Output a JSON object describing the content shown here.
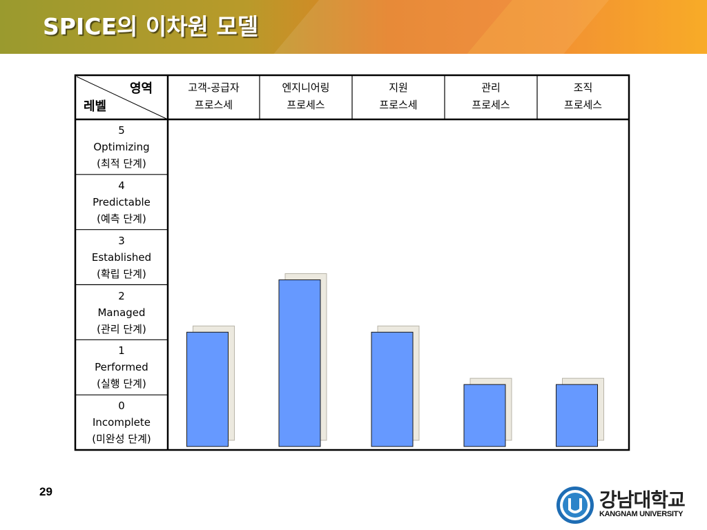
{
  "header": {
    "title": "SPICE의 이차원 모델"
  },
  "table": {
    "corner_top": "영역",
    "corner_bottom": "레벨",
    "columns": [
      {
        "line1": "고객-공급자",
        "line2": "프로스세"
      },
      {
        "line1": "엔지니어링",
        "line2": "프로세스"
      },
      {
        "line1": "지원",
        "line2": "프로스세"
      },
      {
        "line1": "관리",
        "line2": "프로세스"
      },
      {
        "line1": "조직",
        "line2": "프로세스"
      }
    ],
    "levels": [
      {
        "num": "5",
        "name": "Optimizing",
        "kr": "(최적 단계)"
      },
      {
        "num": "4",
        "name": "Predictable",
        "kr": "(예측 단계)"
      },
      {
        "num": "3",
        "name": "Established",
        "kr": "(확립 단계)"
      },
      {
        "num": "2",
        "name": "Managed",
        "kr": "(관리 단계)"
      },
      {
        "num": "1",
        "name": "Performed",
        "kr": "(실행 단계)"
      },
      {
        "num": "0",
        "name": "Incomplete",
        "kr": "(미완성 단계)"
      }
    ]
  },
  "chart_data": {
    "type": "bar",
    "categories": [
      "고객-공급자 프로스세",
      "엔지니어링 프로세스",
      "지원 프로스세",
      "관리 프로세스",
      "조직 프로세스"
    ],
    "values": [
      2.0,
      2.95,
      2.0,
      1.05,
      1.05
    ],
    "ylim": [
      0,
      6
    ],
    "bar_color": "#6699ff",
    "shadow_color": "#ece9df"
  },
  "footer": {
    "page_number": "29",
    "logo_text_kr": "강남대학교",
    "logo_text_en": "KANGNAM UNIVERSITY"
  }
}
